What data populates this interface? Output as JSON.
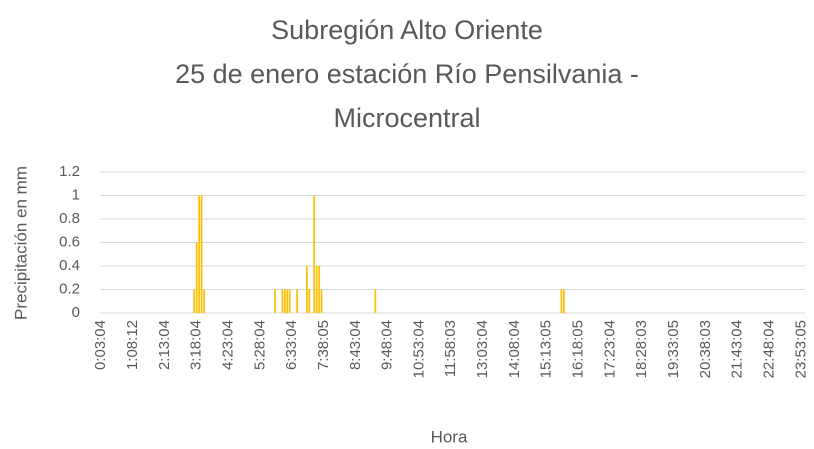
{
  "chart_data": {
    "type": "bar",
    "title": [
      "Subregión Alto Oriente",
      "25 de enero estación Río Pensilvania -",
      "Microcentral"
    ],
    "x_label": "Hora",
    "y_label": "Precipitación en mm",
    "color": "#ffc000",
    "grid": true,
    "ylim": [
      0,
      1.2
    ],
    "yticks": [
      0,
      0.2,
      0.4,
      0.6,
      0.8,
      1,
      1.2
    ],
    "categories": [
      "0:03:04",
      null,
      null,
      null,
      null,
      null,
      null,
      null,
      null,
      null,
      null,
      null,
      null,
      "1:08:12",
      null,
      null,
      null,
      null,
      null,
      null,
      null,
      null,
      null,
      null,
      null,
      null,
      "2:13:04",
      null,
      null,
      null,
      null,
      null,
      null,
      null,
      null,
      null,
      null,
      null,
      null,
      "3:18:04",
      null,
      null,
      null,
      null,
      null,
      null,
      null,
      null,
      null,
      null,
      null,
      null,
      "4:23:04",
      null,
      null,
      null,
      null,
      null,
      null,
      null,
      null,
      null,
      null,
      null,
      null,
      "5:28:04",
      null,
      null,
      null,
      null,
      null,
      null,
      null,
      null,
      null,
      null,
      null,
      null,
      "6:33:04",
      null,
      null,
      null,
      null,
      null,
      null,
      null,
      null,
      null,
      null,
      null,
      null,
      "7:38:05",
      null,
      null,
      null,
      null,
      null,
      null,
      null,
      null,
      null,
      null,
      null,
      null,
      "8:43:04",
      null,
      null,
      null,
      null,
      null,
      null,
      null,
      null,
      null,
      null,
      null,
      null,
      "9:48:04",
      null,
      null,
      null,
      null,
      null,
      null,
      null,
      null,
      null,
      null,
      null,
      null,
      "10:53:04",
      null,
      null,
      null,
      null,
      null,
      null,
      null,
      null,
      null,
      null,
      null,
      null,
      "11:58:03",
      null,
      null,
      null,
      null,
      null,
      null,
      null,
      null,
      null,
      null,
      null,
      null,
      "13:03:04",
      null,
      null,
      null,
      null,
      null,
      null,
      null,
      null,
      null,
      null,
      null,
      null,
      "14:08:04",
      null,
      null,
      null,
      null,
      null,
      null,
      null,
      null,
      null,
      null,
      null,
      null,
      "15:13:05",
      null,
      null,
      null,
      null,
      null,
      null,
      null,
      null,
      null,
      null,
      null,
      null,
      "16:18:05",
      null,
      null,
      null,
      null,
      null,
      null,
      null,
      null,
      null,
      null,
      null,
      null,
      "17:23:04",
      null,
      null,
      null,
      null,
      null,
      null,
      null,
      null,
      null,
      null,
      null,
      null,
      "18:28:03",
      null,
      null,
      null,
      null,
      null,
      null,
      null,
      null,
      null,
      null,
      null,
      null,
      "19:33:05",
      null,
      null,
      null,
      null,
      null,
      null,
      null,
      null,
      null,
      null,
      null,
      null,
      "20:38:03",
      null,
      null,
      null,
      null,
      null,
      null,
      null,
      null,
      null,
      null,
      null,
      null,
      "21:43:04",
      null,
      null,
      null,
      null,
      null,
      null,
      null,
      null,
      null,
      null,
      null,
      null,
      "22:48:04",
      null,
      null,
      null,
      null,
      null,
      null,
      null,
      null,
      null,
      null,
      null,
      null,
      "23:53:05",
      null
    ],
    "values": [
      0,
      0,
      0,
      0,
      0,
      0,
      0,
      0,
      0,
      0,
      0,
      0,
      0,
      0,
      0,
      0,
      0,
      0,
      0,
      0,
      0,
      0,
      0,
      0,
      0,
      0,
      0,
      0,
      0,
      0,
      0,
      0,
      0,
      0,
      0,
      0,
      0,
      0,
      0.2,
      0.6,
      1,
      1,
      0.2,
      0,
      0,
      0,
      0,
      0,
      0,
      0,
      0,
      0,
      0,
      0,
      0,
      0,
      0,
      0,
      0,
      0,
      0,
      0,
      0,
      0,
      0,
      0,
      0,
      0,
      0,
      0,
      0,
      0.2,
      0,
      0,
      0.2,
      0.2,
      0.2,
      0.2,
      0,
      0,
      0.2,
      0,
      0,
      0,
      0.4,
      0.2,
      0,
      1,
      0.4,
      0.4,
      0.2,
      0,
      0,
      0,
      0,
      0,
      0,
      0,
      0,
      0,
      0,
      0,
      0,
      0,
      0,
      0,
      0,
      0,
      0,
      0,
      0,
      0,
      0.2,
      0,
      0,
      0,
      0,
      0,
      0,
      0,
      0,
      0,
      0,
      0,
      0,
      0,
      0,
      0,
      0,
      0,
      0,
      0,
      0,
      0,
      0,
      0,
      0,
      0,
      0,
      0,
      0,
      0,
      0,
      0,
      0,
      0,
      0,
      0,
      0,
      0,
      0,
      0,
      0,
      0,
      0,
      0,
      0,
      0,
      0,
      0,
      0,
      0,
      0,
      0,
      0,
      0,
      0,
      0,
      0,
      0,
      0,
      0,
      0,
      0,
      0,
      0,
      0,
      0,
      0,
      0,
      0,
      0,
      0,
      0,
      0,
      0,
      0,
      0,
      0.2,
      0.2,
      0,
      0,
      0,
      0,
      0,
      0,
      0,
      0,
      0,
      0,
      0,
      0,
      0,
      0,
      0,
      0,
      0,
      0,
      0,
      0,
      0,
      0,
      0,
      0,
      0,
      0,
      0,
      0,
      0,
      0,
      0,
      0,
      0,
      0,
      0,
      0,
      0,
      0,
      0,
      0,
      0,
      0,
      0,
      0,
      0,
      0,
      0,
      0,
      0,
      0,
      0,
      0,
      0,
      0,
      0,
      0,
      0,
      0,
      0,
      0,
      0,
      0,
      0,
      0,
      0,
      0,
      0,
      0,
      0,
      0,
      0,
      0,
      0,
      0,
      0,
      0,
      0,
      0,
      0,
      0,
      0,
      0,
      0,
      0,
      0,
      0,
      0,
      0,
      0,
      0,
      0,
      0,
      0,
      0,
      0,
      0,
      0,
      0
    ]
  }
}
